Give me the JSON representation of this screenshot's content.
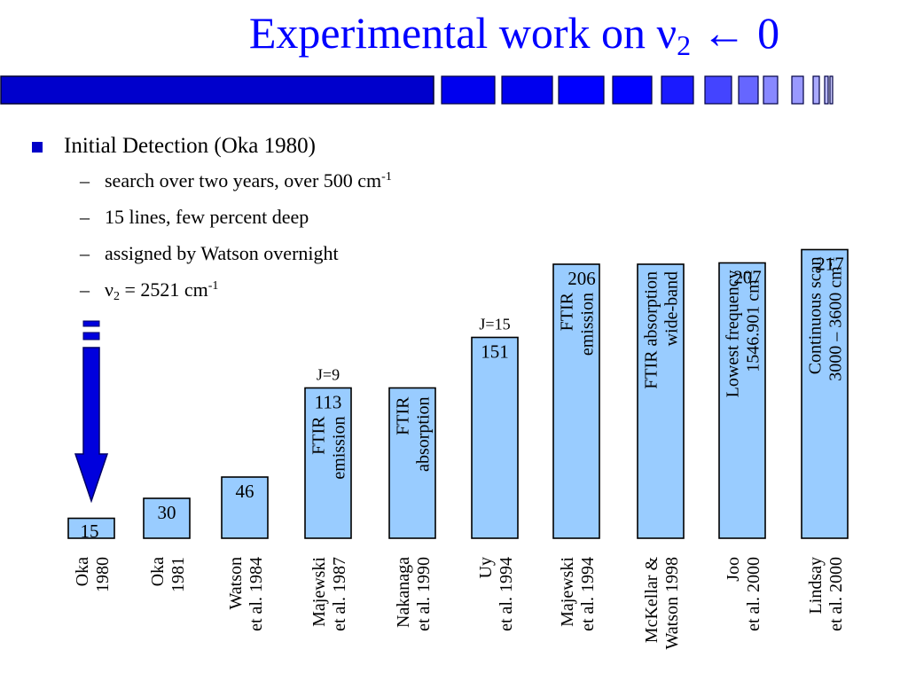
{
  "slide": {
    "title_main": "Experimental work on ν",
    "title_sub": "2",
    "title_tail": " ← 0",
    "accent_color": "#0000ff"
  },
  "bullets": {
    "main": "Initial Detection (Oka 1980)",
    "sub": [
      {
        "text": "search over two years, over 500 cm",
        "sup": "-1"
      },
      {
        "text": "15 lines, few percent deep"
      },
      {
        "text": "assigned by Watson overnight"
      },
      {
        "prefix": "ν",
        "sub": "2",
        "text": " = 2521 cm",
        "sup": "-1"
      }
    ]
  },
  "chart_data": {
    "type": "bar",
    "bar_color": "#99ccff",
    "categories": [
      [
        "Oka",
        "1980"
      ],
      [
        "Oka",
        "1981"
      ],
      [
        "Watson",
        "et al. 1984"
      ],
      [
        "Majewski",
        "et al. 1987"
      ],
      [
        "Nakanaga",
        "et al. 1990"
      ],
      [
        "Uy",
        "et al. 1994"
      ],
      [
        "Majewski",
        "et al. 1994"
      ],
      [
        "McKellar &",
        "Watson 1998"
      ],
      [
        "Joo",
        "et al. 2000"
      ],
      [
        "Lindsay",
        "et al. 2000"
      ]
    ],
    "values": [
      15,
      30,
      46,
      113,
      113,
      151,
      206,
      206,
      207,
      217
    ],
    "value_labels": [
      "15",
      "30",
      "46",
      "113",
      "",
      "151",
      "206",
      "",
      "207",
      "217"
    ],
    "annotations_above": [
      "",
      "",
      "",
      "J=9",
      "",
      "J=15",
      "",
      "",
      "",
      ""
    ],
    "bar_text": [
      [],
      [],
      [],
      [
        {
          "text": "FTIR"
        },
        {
          "text": "emission"
        }
      ],
      [
        {
          "text": "FTIR"
        },
        {
          "text": "absorption"
        }
      ],
      [],
      [
        {
          "text": "FTIR"
        },
        {
          "text": "emission"
        }
      ],
      [
        {
          "text": "FTIR absorption"
        },
        {
          "text": "wide-band"
        }
      ],
      [
        {
          "text": "Lowest frequency"
        },
        {
          "text": "1546.901 cm",
          "sup": "-1"
        }
      ],
      [
        {
          "text": "Continuous scan"
        },
        {
          "text": "3000 – 3600 cm",
          "sup": "-1"
        }
      ]
    ]
  }
}
